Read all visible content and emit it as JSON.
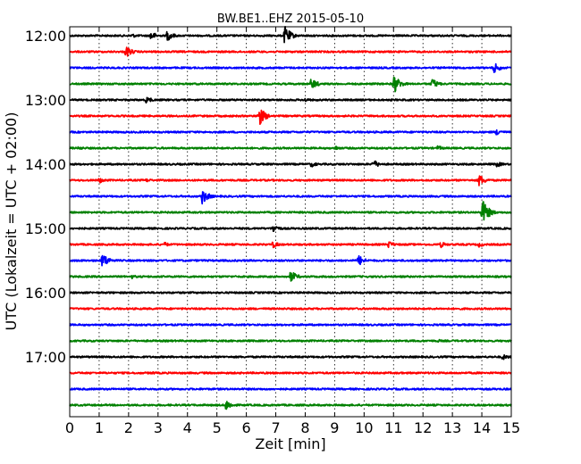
{
  "chart_data": {
    "type": "line",
    "title": "BW.BE1..EHZ 2015-05-10",
    "xlabel": "Zeit  [min]",
    "ylabel": "UTC (Lokalzeit = UTC + 02:00)",
    "xlim": [
      0,
      15
    ],
    "x_ticks": [
      0,
      1,
      2,
      3,
      4,
      5,
      6,
      7,
      8,
      9,
      10,
      11,
      12,
      13,
      14,
      15
    ],
    "x_tick_labels": [
      "0",
      "1",
      "2",
      "3",
      "4",
      "5",
      "6",
      "7",
      "8",
      "9",
      "10",
      "11",
      "12",
      "13",
      "14",
      "15"
    ],
    "y_tick_labels": [
      "12:00",
      "13:00",
      "14:00",
      "15:00",
      "16:00",
      "17:00"
    ],
    "y_tick_rows": [
      0,
      4,
      8,
      12,
      16,
      20
    ],
    "grid": "vertical dotted",
    "trace_colors": [
      "#000000",
      "#ff0000",
      "#0000ff",
      "#008000"
    ],
    "traces": [
      {
        "start": "12:00",
        "events": [
          {
            "t": 2.1,
            "amp": 0.22
          },
          {
            "t": 2.75,
            "amp": 0.45
          },
          {
            "t": 3.3,
            "amp": 0.55
          },
          {
            "t": 7.3,
            "amp": 0.95
          }
        ]
      },
      {
        "start": "12:15",
        "events": [
          {
            "t": 1.9,
            "amp": 0.6
          }
        ]
      },
      {
        "start": "12:30",
        "events": [
          {
            "t": 14.4,
            "amp": 0.55
          }
        ]
      },
      {
        "start": "12:45",
        "events": [
          {
            "t": 8.2,
            "amp": 0.6
          },
          {
            "t": 11.0,
            "amp": 1.0
          },
          {
            "t": 12.3,
            "amp": 0.55
          }
        ]
      },
      {
        "start": "13:00",
        "events": [
          {
            "t": 2.6,
            "amp": 0.35
          },
          {
            "t": 8.0,
            "amp": 0.2
          }
        ]
      },
      {
        "start": "13:15",
        "events": [
          {
            "t": 6.4,
            "amp": 1.1
          }
        ]
      },
      {
        "start": "13:30",
        "events": [
          {
            "t": 14.5,
            "amp": 0.35
          }
        ]
      },
      {
        "start": "13:45",
        "events": [
          {
            "t": 0.3,
            "amp": 0.2
          },
          {
            "t": 9.0,
            "amp": 0.25
          },
          {
            "t": 12.5,
            "amp": 0.25
          }
        ]
      },
      {
        "start": "14:00",
        "events": [
          {
            "t": 8.2,
            "amp": 0.3
          },
          {
            "t": 10.3,
            "amp": 0.45
          },
          {
            "t": 14.5,
            "amp": 0.3
          }
        ]
      },
      {
        "start": "14:15",
        "events": [
          {
            "t": 1.0,
            "amp": 0.3
          },
          {
            "t": 2.6,
            "amp": 0.2
          },
          {
            "t": 13.9,
            "amp": 0.6
          }
        ]
      },
      {
        "start": "14:30",
        "events": [
          {
            "t": 4.5,
            "amp": 0.75
          }
        ]
      },
      {
        "start": "14:45",
        "events": [
          {
            "t": 14.0,
            "amp": 1.35
          }
        ]
      },
      {
        "start": "15:00",
        "events": [
          {
            "t": 6.9,
            "amp": 0.45
          }
        ]
      },
      {
        "start": "15:15",
        "events": [
          {
            "t": 3.2,
            "amp": 0.25
          },
          {
            "t": 6.9,
            "amp": 0.35
          },
          {
            "t": 10.8,
            "amp": 0.4
          },
          {
            "t": 12.6,
            "amp": 0.3
          },
          {
            "t": 13.9,
            "amp": 0.25
          }
        ]
      },
      {
        "start": "15:30",
        "events": [
          {
            "t": 1.1,
            "amp": 0.8
          },
          {
            "t": 9.8,
            "amp": 0.55
          }
        ]
      },
      {
        "start": "15:45",
        "events": [
          {
            "t": 7.5,
            "amp": 0.6
          },
          {
            "t": 2.1,
            "amp": 0.2
          }
        ]
      },
      {
        "start": "16:00",
        "events": []
      },
      {
        "start": "16:15",
        "events": []
      },
      {
        "start": "16:30",
        "events": []
      },
      {
        "start": "16:45",
        "events": [
          {
            "t": 12.5,
            "amp": 0.15
          }
        ]
      },
      {
        "start": "17:00",
        "events": [
          {
            "t": 14.7,
            "amp": 0.3
          }
        ]
      },
      {
        "start": "17:15",
        "events": [
          {
            "t": 2.8,
            "amp": 0.15
          }
        ]
      },
      {
        "start": "17:30",
        "events": []
      },
      {
        "start": "17:45",
        "events": [
          {
            "t": 5.3,
            "amp": 0.55
          }
        ]
      }
    ]
  }
}
